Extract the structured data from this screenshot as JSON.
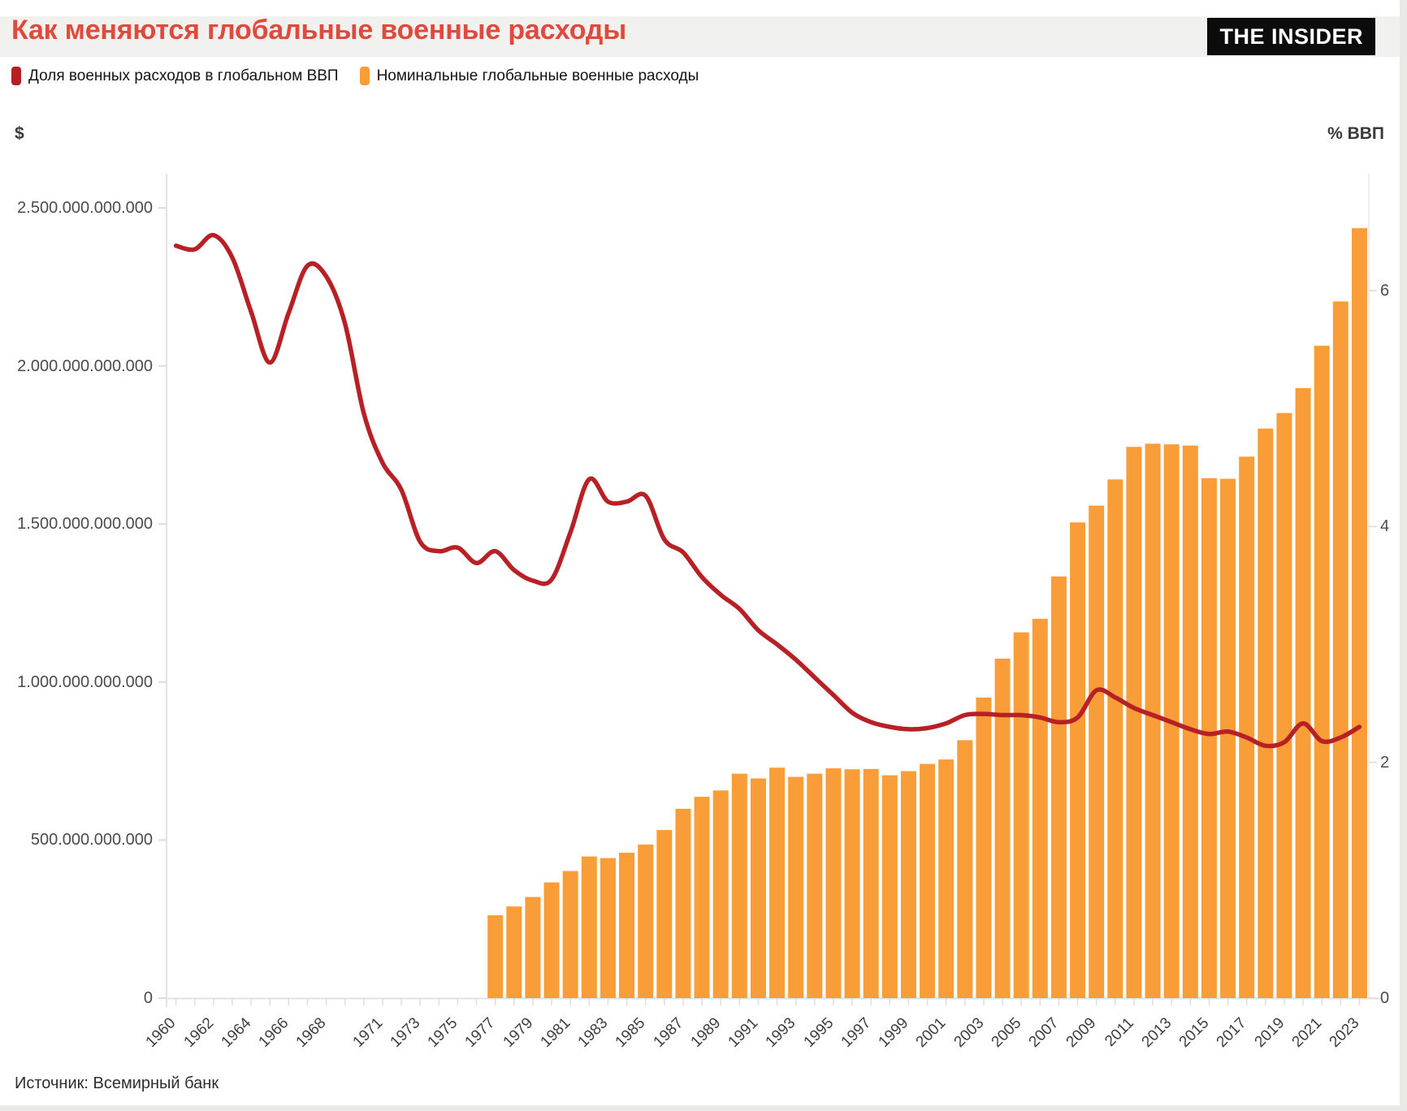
{
  "page": {
    "title": "Как меняются глобальные военные расходы",
    "logo": "THE INSIDER",
    "source": "Источник: Всемирный банк"
  },
  "legend": [
    {
      "label": "Доля военных расходов в глобальном ВВП",
      "color": "#b72025"
    },
    {
      "label": "Номинальные глобальные военные расходы",
      "color": "#f89d38"
    }
  ],
  "colors": {
    "title": "#df4a3c",
    "line_red": "#b72025",
    "bar_orange": "#f89d38",
    "axis_line": "#e2e2e0",
    "tick_text": "#4c4c4c",
    "background": "#ffffff",
    "header_band": "#f1f1ef",
    "logo_bg": "#0c0c0c"
  },
  "chart_data": {
    "type": "combo",
    "title": "Как меняются глобальные военные расходы",
    "grid": "off",
    "legend_position": "top-left",
    "x_axis": {
      "range_years": [
        1960,
        2023
      ],
      "visible_labels": [
        "1960",
        "1962",
        "1964",
        "1966",
        "1968",
        "1971",
        "1973",
        "1975",
        "1977",
        "1979",
        "1981",
        "1983",
        "1985",
        "1987",
        "1989",
        "1991",
        "1993",
        "1995",
        "1997",
        "1999",
        "2001",
        "2003",
        "2005",
        "2007",
        "2009",
        "2011",
        "2013",
        "2015",
        "2017",
        "2019",
        "2021",
        "2023"
      ]
    },
    "left_axis": {
      "unit": "$",
      "range_billions": [
        0,
        2600
      ],
      "ticks": [
        {
          "label": "0",
          "billions": 0
        },
        {
          "label": "500.000.000.000",
          "billions": 500
        },
        {
          "label": "1.000.000.000.000",
          "billions": 1000
        },
        {
          "label": "1.500.000.000.000",
          "billions": 1500
        },
        {
          "label": "2.000.000.000.000",
          "billions": 2000
        },
        {
          "label": "2.500.000.000.000",
          "billions": 2500
        }
      ]
    },
    "right_axis": {
      "unit": "% ВВП",
      "range_percent": [
        0,
        7
      ],
      "ticks": [
        {
          "label": "0",
          "percent": 0
        },
        {
          "label": "2",
          "percent": 2
        },
        {
          "label": "4",
          "percent": 4
        },
        {
          "label": "6",
          "percent": 6
        }
      ]
    },
    "series": [
      {
        "name": "Доля военных расходов в глобальном ВВП",
        "type": "line",
        "axis": "right",
        "unit": "percent of global GDP",
        "color": "#b72025",
        "years": [
          1960,
          1961,
          1962,
          1963,
          1964,
          1965,
          1966,
          1967,
          1968,
          1969,
          1970,
          1971,
          1972,
          1973,
          1974,
          1975,
          1976,
          1977,
          1978,
          1979,
          1980,
          1981,
          1982,
          1983,
          1984,
          1985,
          1986,
          1987,
          1988,
          1989,
          1990,
          1991,
          1992,
          1993,
          1994,
          1995,
          1996,
          1997,
          1998,
          1999,
          2000,
          2001,
          2002,
          2003,
          2004,
          2005,
          2006,
          2007,
          2008,
          2009,
          2010,
          2011,
          2012,
          2013,
          2014,
          2015,
          2016,
          2017,
          2018,
          2019,
          2020,
          2021,
          2022,
          2023
        ],
        "values": [
          6.38,
          6.35,
          6.47,
          6.28,
          5.82,
          5.39,
          5.81,
          6.21,
          6.12,
          5.72,
          4.96,
          4.54,
          4.31,
          3.87,
          3.79,
          3.82,
          3.69,
          3.79,
          3.63,
          3.54,
          3.55,
          3.95,
          4.4,
          4.21,
          4.21,
          4.26,
          3.89,
          3.78,
          3.57,
          3.42,
          3.3,
          3.12,
          3.0,
          2.87,
          2.72,
          2.57,
          2.42,
          2.34,
          2.3,
          2.28,
          2.29,
          2.33,
          2.4,
          2.41,
          2.4,
          2.4,
          2.38,
          2.34,
          2.38,
          2.61,
          2.55,
          2.46,
          2.4,
          2.34,
          2.28,
          2.24,
          2.26,
          2.21,
          2.14,
          2.17,
          2.33,
          2.18,
          2.21,
          2.3
        ]
      },
      {
        "name": "Номинальные глобальные военные расходы",
        "type": "bar",
        "axis": "left",
        "unit": "USD billions",
        "color": "#f89d38",
        "years": [
          1977,
          1978,
          1979,
          1980,
          1981,
          1982,
          1983,
          1984,
          1985,
          1986,
          1987,
          1988,
          1989,
          1990,
          1991,
          1992,
          1993,
          1994,
          1995,
          1996,
          1997,
          1998,
          1999,
          2000,
          2001,
          2002,
          2003,
          2004,
          2005,
          2006,
          2007,
          2008,
          2009,
          2010,
          2011,
          2012,
          2013,
          2014,
          2015,
          2016,
          2017,
          2018,
          2019,
          2020,
          2021,
          2022,
          2023
        ],
        "values": [
          262,
          290,
          320,
          366,
          402,
          448,
          443,
          460,
          486,
          532,
          599,
          637,
          657,
          710,
          695,
          729,
          700,
          710,
          727,
          724,
          725,
          705,
          718,
          741,
          755,
          816,
          951,
          1074,
          1157,
          1200,
          1334,
          1505,
          1558,
          1641,
          1744,
          1754,
          1752,
          1748,
          1645,
          1643,
          1713,
          1802,
          1851,
          1930,
          2064,
          2204,
          2436
        ]
      }
    ]
  }
}
